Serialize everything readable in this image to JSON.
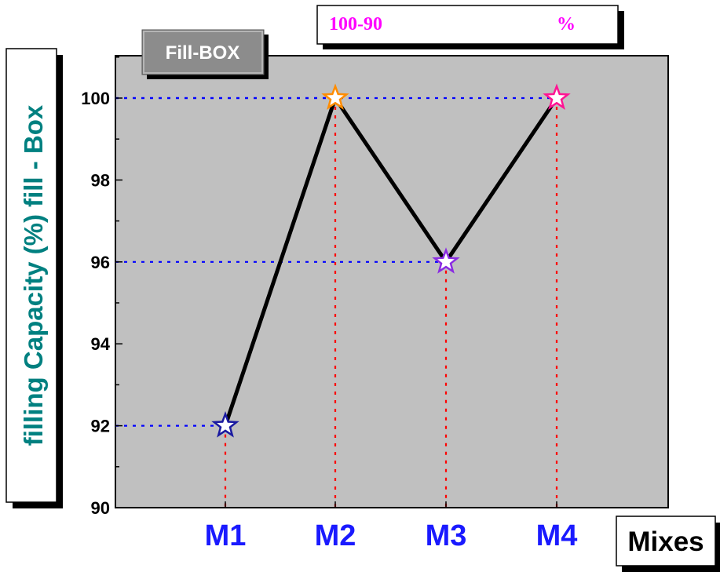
{
  "chart_data": {
    "type": "line",
    "categories": [
      "M1",
      "M2",
      "M3",
      "M4"
    ],
    "values": [
      92,
      100,
      96,
      100
    ],
    "ylabel": "filling Capacity (%) fill - Box",
    "xlabel": "Mixes",
    "ylim": [
      90,
      101
    ],
    "yticks": [
      "90",
      "92",
      "94",
      "96",
      "98",
      "100"
    ],
    "marker_colors": [
      "#1a1aa0",
      "#ff8c00",
      "#8a2be2",
      "#ff1493"
    ],
    "line_color": "#000000",
    "plot_background": "#c0c0c0",
    "guide_h_color": "#0000ff",
    "guide_v_color": "#ff0000",
    "category_label_color": "#1a1aff",
    "ylabel_color": "#008080",
    "grid": false
  },
  "annotations": {
    "box_title": "Fill-BOX",
    "range_left": "100-90",
    "range_right": "%",
    "range_color": "#ff00ff"
  }
}
